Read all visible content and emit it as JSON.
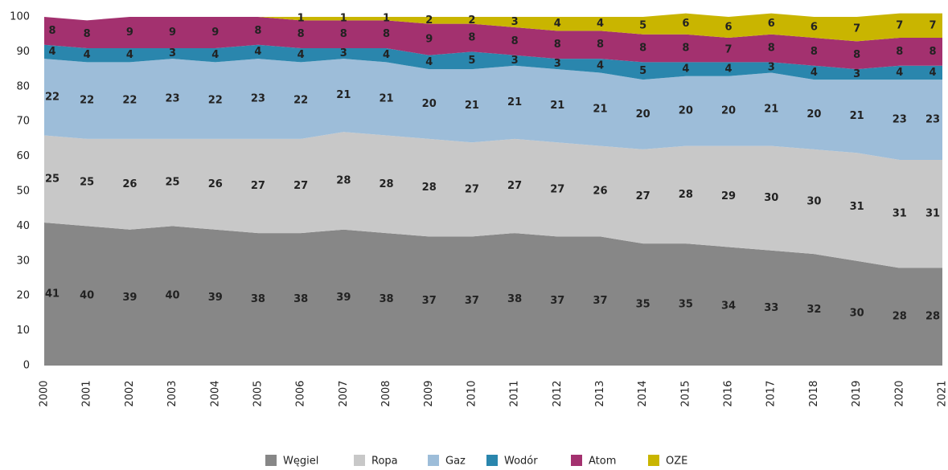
{
  "chart_data": {
    "type": "stacked-area",
    "categories": [
      "2000",
      "2001",
      "2002",
      "2003",
      "2004",
      "2005",
      "2006",
      "2007",
      "2008",
      "2009",
      "2010",
      "2011",
      "2012",
      "2013",
      "2014",
      "2015",
      "2016",
      "2017",
      "2018",
      "2019",
      "2020",
      "2021"
    ],
    "series": [
      {
        "name": "Węgiel",
        "color": "#878787",
        "values": [
          41,
          40,
          39,
          40,
          39,
          38,
          38,
          39,
          38,
          37,
          37,
          38,
          37,
          37,
          35,
          35,
          34,
          33,
          32,
          30,
          28,
          28
        ]
      },
      {
        "name": "Ropa",
        "color": "#c8c8c8",
        "values": [
          25,
          25,
          26,
          25,
          26,
          27,
          27,
          28,
          28,
          28,
          27,
          27,
          27,
          26,
          27,
          28,
          29,
          30,
          30,
          31,
          31,
          31
        ]
      },
      {
        "name": "Gaz",
        "color": "#9dbdd9",
        "values": [
          22,
          22,
          22,
          23,
          22,
          23,
          22,
          21,
          21,
          20,
          21,
          21,
          21,
          21,
          20,
          20,
          20,
          21,
          20,
          21,
          23,
          23
        ]
      },
      {
        "name": "Wodór",
        "color": "#2a86ad",
        "values": [
          4,
          4,
          4,
          3,
          4,
          4,
          4,
          3,
          4,
          4,
          5,
          3,
          3,
          4,
          5,
          4,
          4,
          3,
          4,
          3,
          4,
          4
        ]
      },
      {
        "name": "Atom",
        "color": "#a3316f",
        "values": [
          8,
          8,
          9,
          9,
          9,
          8,
          8,
          8,
          8,
          9,
          8,
          8,
          8,
          8,
          8,
          8,
          7,
          8,
          8,
          8,
          8,
          8
        ]
      },
      {
        "name": "OZE",
        "color": "#c9b500",
        "values": [
          0,
          0,
          0,
          0,
          0,
          0,
          1,
          1,
          1,
          2,
          2,
          3,
          4,
          4,
          5,
          6,
          6,
          6,
          6,
          7,
          7,
          7
        ]
      }
    ],
    "ylim": [
      0,
      100
    ],
    "yticks": [
      0,
      10,
      20,
      30,
      40,
      50,
      60,
      70,
      80,
      90,
      100
    ],
    "legend": "bottom"
  }
}
